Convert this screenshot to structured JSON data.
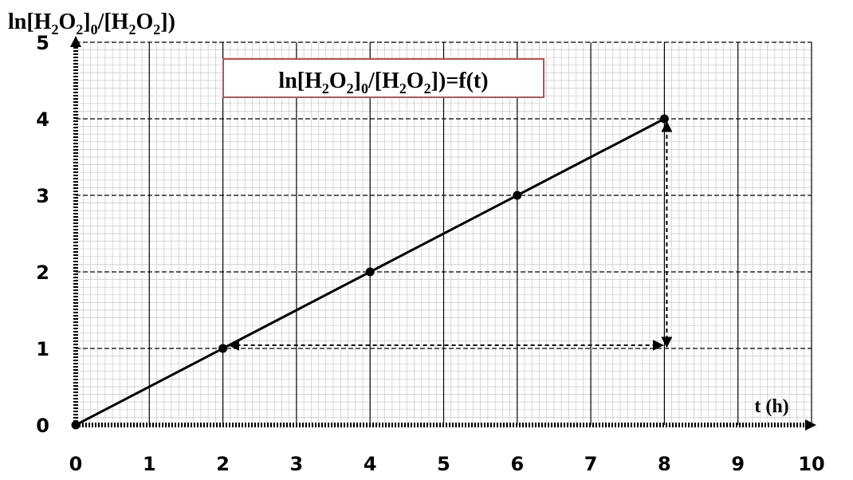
{
  "chart_data": {
    "type": "line",
    "title": "ln[H2O2]0/[H2O2])=f(t)",
    "title_parts": [
      "ln[H",
      "2",
      "O",
      "2",
      "]",
      "0",
      "/[H",
      "2",
      "O",
      "2",
      "])=f(t)"
    ],
    "ylabel": "ln[H2O2]0/[H2O2])",
    "ylabel_parts": [
      "ln[H",
      "2",
      "O",
      "2",
      "]",
      "0",
      "/[H",
      "2",
      "O",
      "2",
      "])"
    ],
    "xlabel": "t (h)",
    "xlim": [
      0,
      10
    ],
    "ylim": [
      0,
      5
    ],
    "x_ticks": [
      "0",
      "1",
      "2",
      "3",
      "4",
      "5",
      "6",
      "7",
      "8",
      "9",
      "10"
    ],
    "y_ticks": [
      "0",
      "1",
      "2",
      "3",
      "4",
      "5"
    ],
    "grid": true,
    "series": [
      {
        "x": [
          0,
          2,
          4,
          6,
          8
        ],
        "y": [
          0,
          1,
          2,
          3,
          4
        ]
      }
    ],
    "annotations": [
      {
        "type": "double-arrow-horizontal",
        "from": [
          2,
          1
        ],
        "to": [
          8,
          1
        ]
      },
      {
        "type": "double-arrow-vertical",
        "from": [
          8,
          1
        ],
        "to": [
          8,
          4
        ]
      }
    ],
    "colors": {
      "line": "#000000",
      "major_grid": "#000000",
      "minor_grid": "#c8c8c8",
      "box_border": "#c0504d"
    }
  }
}
